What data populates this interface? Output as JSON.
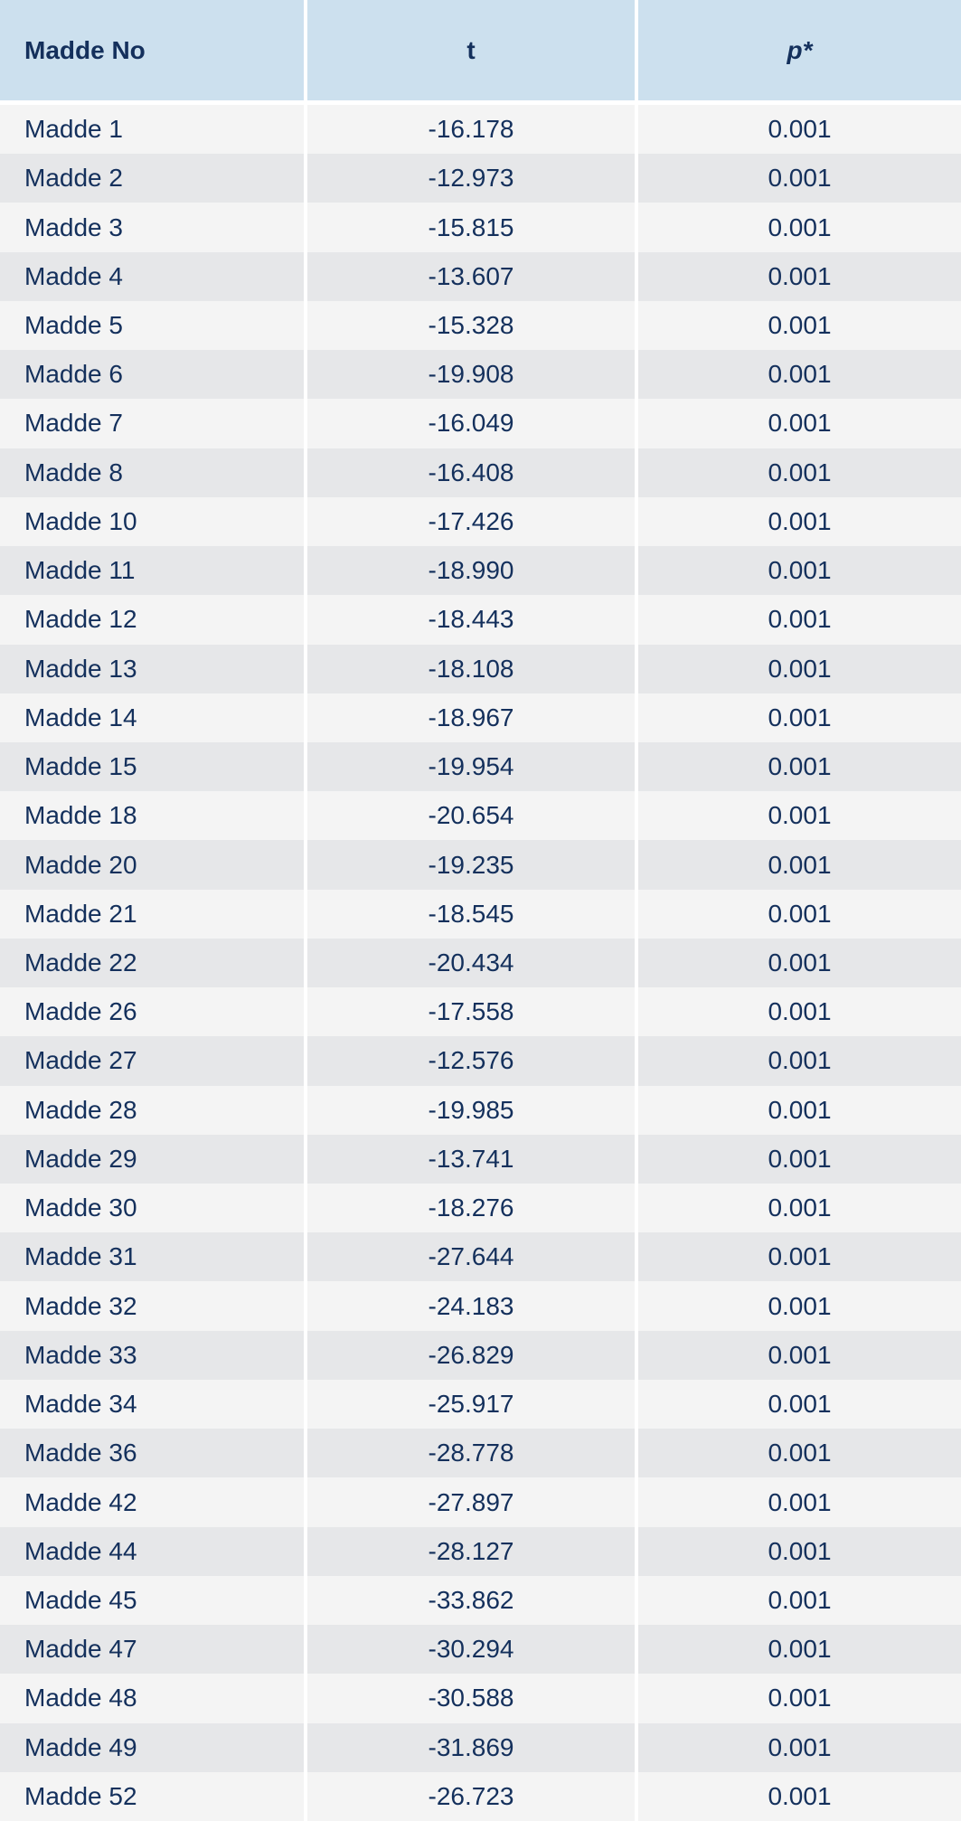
{
  "table": {
    "headers": [
      "Madde No",
      "t",
      "p*"
    ],
    "rows": [
      [
        "Madde 1",
        "-16.178",
        "0.001"
      ],
      [
        "Madde 2",
        "-12.973",
        "0.001"
      ],
      [
        "Madde 3",
        "-15.815",
        "0.001"
      ],
      [
        "Madde 4",
        "-13.607",
        "0.001"
      ],
      [
        "Madde 5",
        "-15.328",
        "0.001"
      ],
      [
        "Madde 6",
        "-19.908",
        "0.001"
      ],
      [
        "Madde 7",
        "-16.049",
        "0.001"
      ],
      [
        "Madde 8",
        "-16.408",
        "0.001"
      ],
      [
        "Madde 10",
        "-17.426",
        "0.001"
      ],
      [
        "Madde 11",
        "-18.990",
        "0.001"
      ],
      [
        "Madde 12",
        "-18.443",
        "0.001"
      ],
      [
        "Madde 13",
        "-18.108",
        "0.001"
      ],
      [
        "Madde 14",
        "-18.967",
        "0.001"
      ],
      [
        "Madde 15",
        "-19.954",
        "0.001"
      ],
      [
        "Madde 18",
        "-20.654",
        "0.001"
      ],
      [
        "Madde 20",
        "-19.235",
        "0.001"
      ],
      [
        "Madde 21",
        "-18.545",
        "0.001"
      ],
      [
        "Madde 22",
        "-20.434",
        "0.001"
      ],
      [
        "Madde 26",
        "-17.558",
        "0.001"
      ],
      [
        "Madde 27",
        "-12.576",
        "0.001"
      ],
      [
        "Madde 28",
        "-19.985",
        "0.001"
      ],
      [
        "Madde 29",
        "-13.741",
        "0.001"
      ],
      [
        "Madde 30",
        "-18.276",
        "0.001"
      ],
      [
        "Madde 31",
        "-27.644",
        "0.001"
      ],
      [
        "Madde 32",
        "-24.183",
        "0.001"
      ],
      [
        "Madde 33",
        "-26.829",
        "0.001"
      ],
      [
        "Madde 34",
        "-25.917",
        "0.001"
      ],
      [
        "Madde 36",
        "-28.778",
        "0.001"
      ],
      [
        "Madde 42",
        "-27.897",
        "0.001"
      ],
      [
        "Madde 44",
        "-28.127",
        "0.001"
      ],
      [
        "Madde 45",
        "-33.862",
        "0.001"
      ],
      [
        "Madde 47",
        "-30.294",
        "0.001"
      ],
      [
        "Madde 48",
        "-30.588",
        "0.001"
      ],
      [
        "Madde 49",
        "-31.869",
        "0.001"
      ],
      [
        "Madde 52",
        "-26.723",
        "0.001"
      ]
    ]
  },
  "colors": {
    "header_bg": "#cce0ee",
    "row_light": "#f4f4f4",
    "row_dark": "#e6e7e9",
    "text": "#14305c"
  }
}
